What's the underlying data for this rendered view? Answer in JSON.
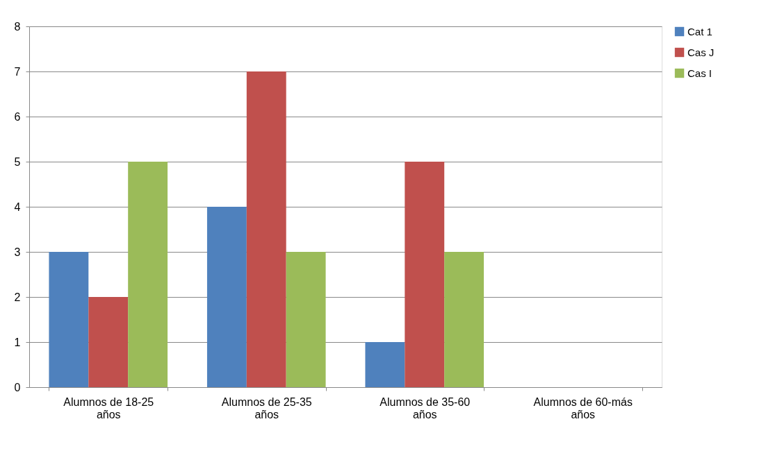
{
  "chart_data": {
    "type": "bar",
    "categories": [
      "Alumnos de 18-25 años",
      "Alumnos de 25-35 años",
      "Alumnos de 35-60 años",
      "Alumnos de 60-más años"
    ],
    "series": [
      {
        "name": "Cat 1",
        "color": "#4f81bd",
        "values": [
          3,
          4,
          1,
          null
        ]
      },
      {
        "name": "Cas J",
        "color": "#c0504d",
        "values": [
          2,
          7,
          5,
          null
        ]
      },
      {
        "name": "Cas I",
        "color": "#9bbb59",
        "values": [
          5,
          3,
          3,
          null
        ]
      }
    ],
    "ylim": [
      0,
      8
    ],
    "yticks": [
      0,
      1,
      2,
      3,
      4,
      5,
      6,
      7,
      8
    ],
    "grid": "y",
    "legend": "right"
  }
}
